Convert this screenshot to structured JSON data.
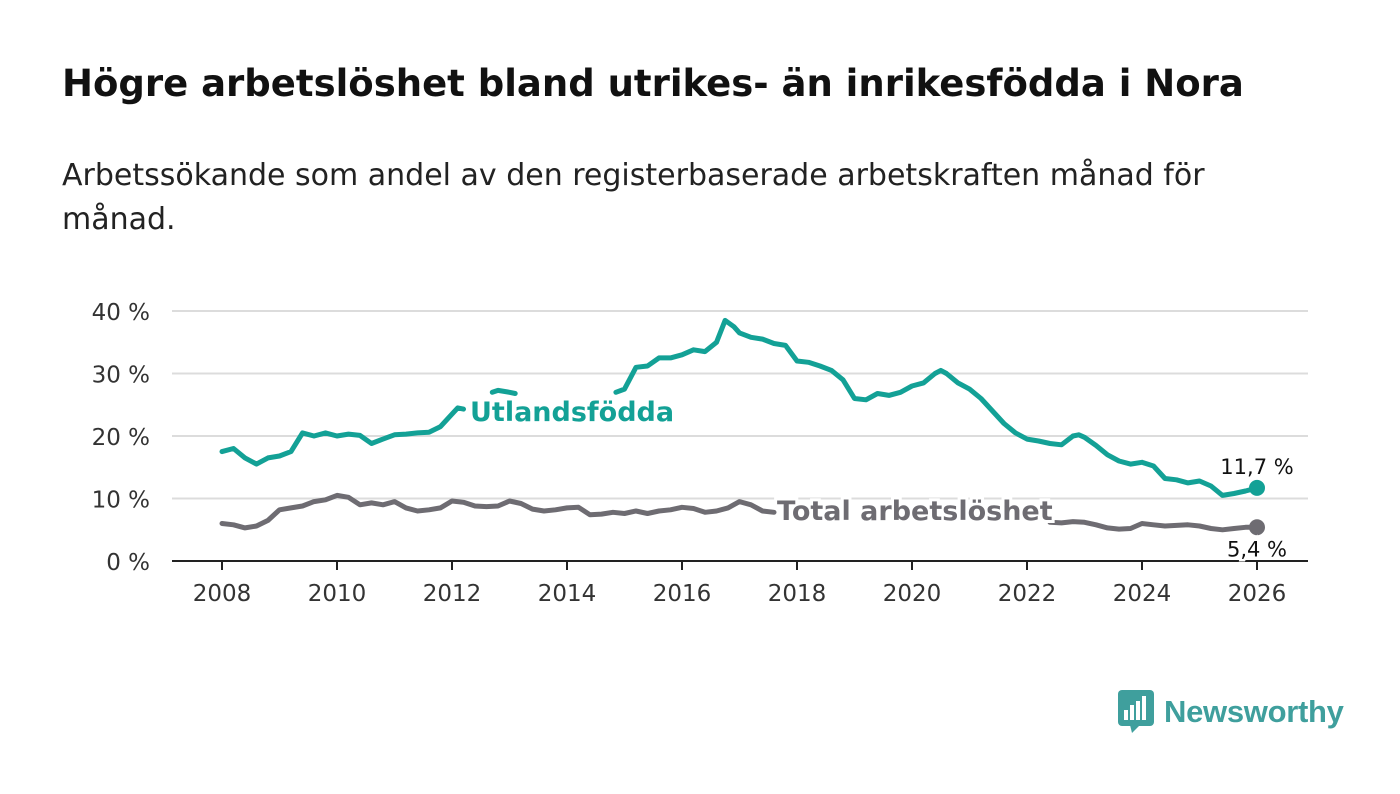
{
  "header": {
    "title": "Högre arbetslöshet bland utrikes- än inrikesfödda i Nora",
    "subtitle": "Arbetssökande som andel av den registerbaserade arbetskraften månad för månad."
  },
  "brand": {
    "name": "Newsworthy",
    "icon": "bar-chart-speech-bubble-icon",
    "color": "#3f9f9d"
  },
  "chart_data": {
    "type": "line",
    "title": "Högre arbetslöshet bland utrikes- än inrikesfödda i Nora",
    "xlabel": "",
    "ylabel": "",
    "xlim": [
      2007.4,
      2026.9
    ],
    "ylim": [
      0,
      40
    ],
    "x_ticks": [
      2008,
      2010,
      2012,
      2014,
      2016,
      2018,
      2020,
      2022,
      2024,
      2026
    ],
    "x_tick_labels": [
      "2008",
      "2010",
      "2012",
      "2014",
      "2016",
      "2018",
      "2020",
      "2022",
      "2024",
      "2026"
    ],
    "y_ticks": [
      0,
      10,
      20,
      30,
      40
    ],
    "y_tick_labels": [
      "0 %",
      "10 %",
      "20 %",
      "30 %",
      "40 %"
    ],
    "grid": true,
    "series": [
      {
        "name": "Utlandsfödda",
        "color": "#13a196",
        "label": "Utlandsfödda",
        "end_label": "11,7 %",
        "x": [
          2008.0,
          2008.2,
          2008.4,
          2008.6,
          2008.8,
          2009.0,
          2009.2,
          2009.4,
          2009.6,
          2009.8,
          2010.0,
          2010.2,
          2010.4,
          2010.6,
          2010.8,
          2011.0,
          2011.2,
          2011.4,
          2011.6,
          2011.8,
          2012.0,
          2012.1,
          2012.2,
          null,
          2012.7,
          2012.8,
          2013.0,
          2013.1,
          null,
          2014.85,
          2015.0,
          2015.2,
          2015.4,
          2015.6,
          2015.8,
          2016.0,
          2016.2,
          2016.4,
          2016.6,
          2016.75,
          2016.9,
          2017.0,
          2017.2,
          2017.4,
          2017.6,
          2017.8,
          2018.0,
          2018.2,
          2018.4,
          2018.6,
          2018.8,
          2019.0,
          2019.2,
          2019.4,
          2019.6,
          2019.8,
          2020.0,
          2020.2,
          2020.4,
          2020.5,
          2020.6,
          2020.8,
          2021.0,
          2021.2,
          2021.4,
          2021.6,
          2021.8,
          2022.0,
          2022.2,
          2022.4,
          2022.6,
          2022.8,
          2022.9,
          2023.0,
          2023.2,
          2023.4,
          2023.6,
          2023.8,
          2024.0,
          2024.2,
          2024.4,
          2024.6,
          2024.8,
          2025.0,
          2025.2,
          2025.4,
          2025.6,
          2025.8,
          2026.0
        ],
        "values": [
          17.5,
          18.0,
          16.5,
          15.5,
          16.5,
          16.8,
          17.5,
          20.5,
          20.0,
          20.5,
          20.0,
          20.3,
          20.1,
          18.8,
          19.5,
          20.2,
          20.3,
          20.5,
          20.6,
          21.5,
          23.5,
          24.5,
          24.3,
          null,
          27.0,
          27.3,
          27.0,
          26.8,
          null,
          27.0,
          27.5,
          31.0,
          31.2,
          32.5,
          32.5,
          33.0,
          33.8,
          33.5,
          35.0,
          38.5,
          37.5,
          36.5,
          35.8,
          35.5,
          34.8,
          34.5,
          32.0,
          31.8,
          31.2,
          30.5,
          29.0,
          26.0,
          25.8,
          26.8,
          26.5,
          27.0,
          28.0,
          28.5,
          30.0,
          30.5,
          30.0,
          28.5,
          27.5,
          26.0,
          24.0,
          22.0,
          20.5,
          19.5,
          19.2,
          18.8,
          18.6,
          20.0,
          20.2,
          19.8,
          18.5,
          17.0,
          16.0,
          15.5,
          15.8,
          15.2,
          13.2,
          13.0,
          12.5,
          12.8,
          12.0,
          10.5,
          10.8,
          11.2,
          11.7
        ]
      },
      {
        "name": "Total arbetslöshet",
        "color": "#6e6c72",
        "label": "Total arbetslöshet",
        "end_label": "5,4 %",
        "x": [
          2008.0,
          2008.2,
          2008.4,
          2008.6,
          2008.8,
          2009.0,
          2009.2,
          2009.4,
          2009.6,
          2009.8,
          2010.0,
          2010.2,
          2010.4,
          2010.6,
          2010.8,
          2011.0,
          2011.2,
          2011.4,
          2011.6,
          2011.8,
          2012.0,
          2012.2,
          2012.4,
          2012.6,
          2012.8,
          2013.0,
          2013.2,
          2013.4,
          2013.6,
          2013.8,
          2014.0,
          2014.2,
          2014.4,
          2014.6,
          2014.8,
          2015.0,
          2015.2,
          2015.4,
          2015.6,
          2015.8,
          2016.0,
          2016.2,
          2016.4,
          2016.6,
          2016.8,
          2017.0,
          2017.2,
          2017.4,
          2017.6,
          null,
          2022.4,
          2022.6,
          2022.8,
          2023.0,
          2023.2,
          2023.4,
          2023.6,
          2023.8,
          2024.0,
          2024.2,
          2024.4,
          2024.6,
          2024.8,
          2025.0,
          2025.2,
          2025.4,
          2025.6,
          2025.8,
          2026.0
        ],
        "values": [
          6.0,
          5.8,
          5.3,
          5.6,
          6.5,
          8.2,
          8.5,
          8.8,
          9.5,
          9.8,
          10.5,
          10.2,
          9.0,
          9.3,
          9.0,
          9.5,
          8.5,
          8.0,
          8.2,
          8.5,
          9.6,
          9.4,
          8.8,
          8.7,
          8.8,
          9.6,
          9.2,
          8.3,
          8.0,
          8.2,
          8.5,
          8.6,
          7.4,
          7.5,
          7.8,
          7.6,
          8.0,
          7.6,
          8.0,
          8.2,
          8.6,
          8.4,
          7.8,
          8.0,
          8.5,
          9.5,
          9.0,
          8.0,
          7.8,
          null,
          6.2,
          6.1,
          6.3,
          6.2,
          5.8,
          5.3,
          5.1,
          5.2,
          6.0,
          5.8,
          5.6,
          5.7,
          5.8,
          5.6,
          5.2,
          5.0,
          5.2,
          5.4,
          5.4
        ]
      }
    ]
  }
}
